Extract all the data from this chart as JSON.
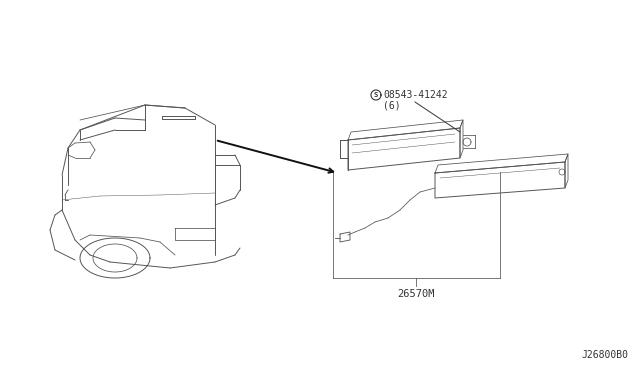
{
  "bg_color": "#ffffff",
  "part_label_1": "08543-41242",
  "part_label_2": "(6)",
  "part_label_3": "26570M",
  "diagram_id": "J26800B0",
  "line_color": "#555555",
  "text_color": "#333333"
}
